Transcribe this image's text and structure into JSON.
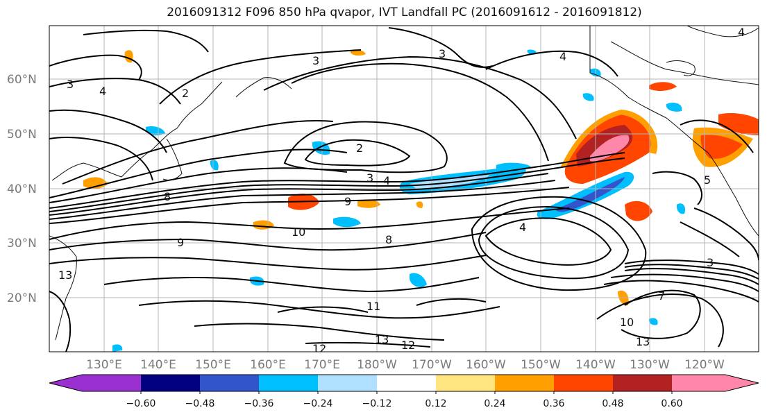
{
  "title": "2016091312 F096 850 hPa qvapor, IVT Landfall PC (2016091612 - 2016091812)",
  "map": {
    "lon_labels": [
      "130°E",
      "140°E",
      "150°E",
      "160°E",
      "170°E",
      "180°W",
      "170°W",
      "160°W",
      "150°W",
      "140°W",
      "130°W",
      "120°W"
    ],
    "lat_labels": [
      "60°N",
      "50°N",
      "40°N",
      "30°N",
      "20°N"
    ],
    "contour_labels": [
      "3",
      "4",
      "2",
      "3",
      "4",
      "2",
      "3",
      "4",
      "9",
      "8",
      "10",
      "9",
      "8",
      "4",
      "3",
      "13",
      "11",
      "12",
      "13",
      "12",
      "10",
      "13",
      "7",
      "5",
      "3",
      "4"
    ]
  },
  "colorbar": {
    "ticks": [
      "−0.60",
      "−0.48",
      "−0.36",
      "−0.24",
      "−0.12",
      "0.12",
      "0.24",
      "0.36",
      "0.48",
      "0.60"
    ],
    "colors": [
      "#9b30d0",
      "#000080",
      "#3355cc",
      "#00bfff",
      "#b0e0ff",
      "#ffffff",
      "#ffe680",
      "#ffa000",
      "#ff4500",
      "#b22222",
      "#ff88aa"
    ]
  }
}
